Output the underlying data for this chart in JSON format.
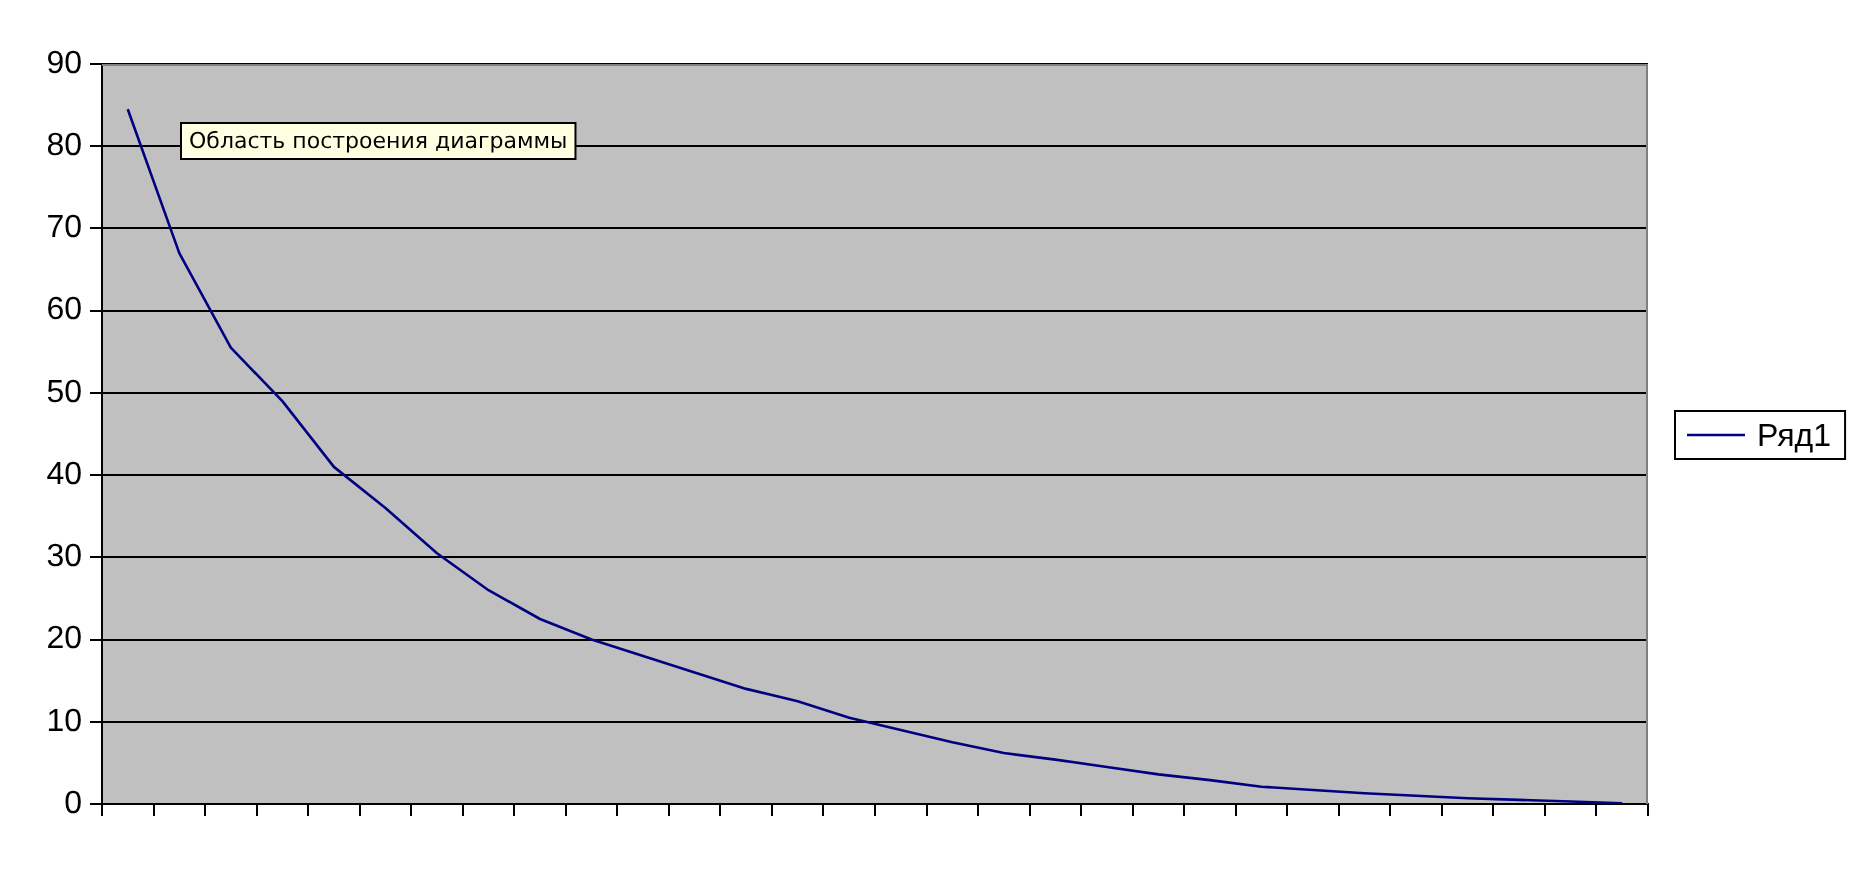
{
  "chart_data": {
    "type": "line",
    "categories": [
      null,
      null,
      null,
      null,
      null,
      null,
      null,
      null,
      null,
      null,
      null,
      null,
      null,
      null,
      null,
      null,
      null,
      null,
      null,
      null,
      null,
      null,
      null,
      null,
      null,
      null,
      null,
      null,
      null,
      null
    ],
    "series": [
      {
        "name": "Ряд1",
        "color": "#000080",
        "values": [
          84.5,
          67,
          55.5,
          49,
          41,
          36,
          30.5,
          26,
          22.5,
          20,
          18,
          16,
          14,
          12.5,
          10.5,
          9,
          7.5,
          6.2,
          5.4,
          4.5,
          3.6,
          2.9,
          2.1,
          1.7,
          1.3,
          1,
          0.7,
          0.5,
          0.3,
          0.1
        ]
      }
    ],
    "ylim": [
      0,
      90
    ],
    "yticks": [
      0,
      10,
      20,
      30,
      40,
      50,
      60,
      70,
      80,
      90
    ],
    "grid": "y",
    "legend": "right",
    "marker": "none",
    "tick_labels": "y",
    "annotations": [
      "Область построения диаграммы"
    ]
  }
}
